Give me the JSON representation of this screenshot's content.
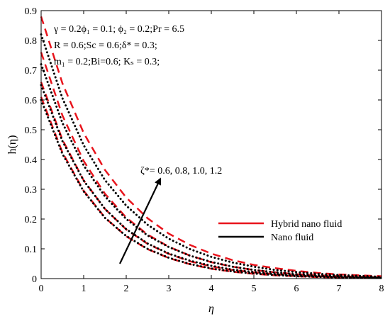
{
  "chart_data": {
    "type": "line",
    "title": "",
    "xlabel": "η",
    "ylabel": "h(η)",
    "xlim": [
      0,
      8
    ],
    "ylim": [
      0,
      0.9
    ],
    "grid": false,
    "xticks": [
      "0",
      "1",
      "2",
      "3",
      "4",
      "5",
      "6",
      "7",
      "8"
    ],
    "yticks": [
      "0",
      "0.1",
      "0.2",
      "0.3",
      "0.4",
      "0.5",
      "0.6",
      "0.7",
      "0.8",
      "0.9"
    ],
    "annotations": {
      "param_line_1": "γ = 0.2ϕ₁ = 0.1; ϕ₂ = 0.2;Pr = 6.5",
      "param_line_2": "R = 0.6;Sc = 0.6;δ* = 0.3;",
      "param_line_3": "m₁ = 0.2;Bi=0.6; Kₛ = 0.3;",
      "arrow_label": "ζ*= 0.6, 0.8, 1.0, 1.2"
    },
    "legend": {
      "position": "right-middle",
      "entries": [
        {
          "label": "Hybrid nano fluid",
          "color": "#e8141c",
          "style": "solid"
        },
        {
          "label": "Nano fluid",
          "color": "#000000",
          "style": "solid"
        }
      ]
    },
    "x": [
      0,
      0.5,
      1,
      1.5,
      2,
      2.5,
      3,
      3.5,
      4,
      4.5,
      5,
      5.5,
      6,
      6.5,
      7,
      7.5,
      8
    ],
    "series": [
      {
        "group": "hybrid",
        "color": "#e8141c",
        "dash": "dashed",
        "values": [
          0.88,
          0.656,
          0.489,
          0.365,
          0.272,
          0.203,
          0.151,
          0.113,
          0.084,
          0.062,
          0.046,
          0.035,
          0.026,
          0.019,
          0.014,
          0.011,
          0.008
        ]
      },
      {
        "group": "hybrid",
        "color": "#e8141c",
        "dash": "dashed",
        "values": [
          0.76,
          0.548,
          0.395,
          0.285,
          0.205,
          0.148,
          0.107,
          0.077,
          0.055,
          0.04,
          0.029,
          0.021,
          0.015,
          0.011,
          0.008,
          0.006,
          0.004
        ]
      },
      {
        "group": "hybrid",
        "color": "#e8141c",
        "dash": "dashed",
        "values": [
          0.66,
          0.467,
          0.33,
          0.234,
          0.165,
          0.117,
          0.083,
          0.058,
          0.041,
          0.029,
          0.021,
          0.015,
          0.01,
          0.007,
          0.005,
          0.004,
          0.003
        ]
      },
      {
        "group": "hybrid",
        "color": "#e8141c",
        "dash": "dashed",
        "values": [
          0.61,
          0.424,
          0.295,
          0.205,
          0.142,
          0.099,
          0.069,
          0.048,
          0.033,
          0.023,
          0.016,
          0.011,
          0.008,
          0.005,
          0.004,
          0.003,
          0.002
        ]
      },
      {
        "group": "nano",
        "color": "#000000",
        "dash": "dotted",
        "values": [
          0.82,
          0.606,
          0.448,
          0.331,
          0.245,
          0.181,
          0.134,
          0.099,
          0.073,
          0.054,
          0.04,
          0.029,
          0.022,
          0.016,
          0.012,
          0.009,
          0.006
        ]
      },
      {
        "group": "nano",
        "color": "#000000",
        "dash": "dotted",
        "values": [
          0.72,
          0.523,
          0.38,
          0.276,
          0.2,
          0.145,
          0.106,
          0.077,
          0.056,
          0.04,
          0.029,
          0.021,
          0.015,
          0.011,
          0.008,
          0.006,
          0.004
        ]
      },
      {
        "group": "nano",
        "color": "#000000",
        "dash": "dotted",
        "values": [
          0.65,
          0.462,
          0.329,
          0.234,
          0.166,
          0.118,
          0.084,
          0.06,
          0.043,
          0.03,
          0.022,
          0.015,
          0.011,
          0.008,
          0.005,
          0.004,
          0.003
        ]
      },
      {
        "group": "nano",
        "color": "#000000",
        "dash": "dotted",
        "values": [
          0.6,
          0.419,
          0.293,
          0.204,
          0.143,
          0.1,
          0.07,
          0.049,
          0.034,
          0.024,
          0.017,
          0.012,
          0.008,
          0.006,
          0.004,
          0.003,
          0.002
        ]
      }
    ],
    "arrow": {
      "from": [
        1.85,
        0.05
      ],
      "to": [
        2.8,
        0.335
      ]
    }
  }
}
